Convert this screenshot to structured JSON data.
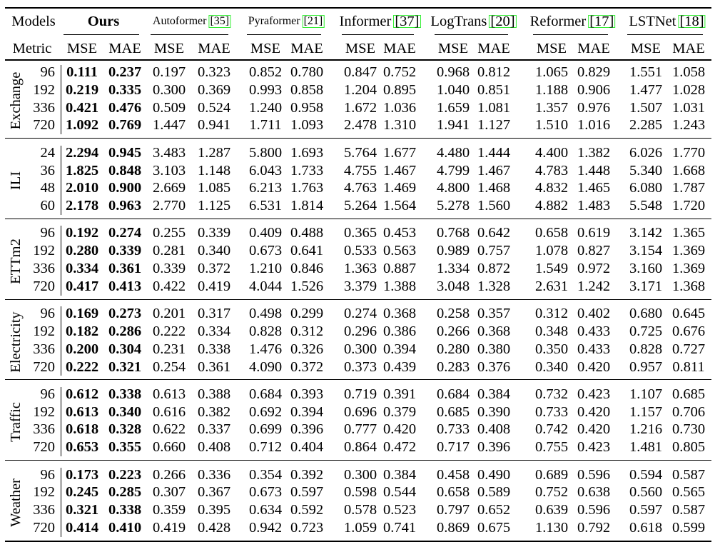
{
  "table": {
    "header": {
      "label": "Models",
      "models": [
        {
          "name": "Ours"
        },
        {
          "name": "Autoformer",
          "ref": "[35]"
        },
        {
          "name": "Pyraformer",
          "ref": "[21]"
        },
        {
          "name": "Informer",
          "ref": "[37]"
        },
        {
          "name": "LogTrans",
          "ref": "[20]"
        },
        {
          "name": "Reformer",
          "ref": "[17]"
        },
        {
          "name": "LSTNet",
          "ref": "[18]"
        }
      ]
    },
    "metric_row": {
      "label": "Metric",
      "metrics": [
        "MSE",
        "MAE"
      ]
    },
    "groups": [
      {
        "dataset": "Exchange",
        "rows": [
          {
            "horizon": "96",
            "values": [
              "0.111",
              "0.237",
              "0.197",
              "0.323",
              "0.852",
              "0.780",
              "0.847",
              "0.752",
              "0.968",
              "0.812",
              "1.065",
              "0.829",
              "1.551",
              "1.058"
            ]
          },
          {
            "horizon": "192",
            "values": [
              "0.219",
              "0.335",
              "0.300",
              "0.369",
              "0.993",
              "0.858",
              "1.204",
              "0.895",
              "1.040",
              "0.851",
              "1.188",
              "0.906",
              "1.477",
              "1.028"
            ]
          },
          {
            "horizon": "336",
            "values": [
              "0.421",
              "0.476",
              "0.509",
              "0.524",
              "1.240",
              "0.958",
              "1.672",
              "1.036",
              "1.659",
              "1.081",
              "1.357",
              "0.976",
              "1.507",
              "1.031"
            ]
          },
          {
            "horizon": "720",
            "values": [
              "1.092",
              "0.769",
              "1.447",
              "0.941",
              "1.711",
              "1.093",
              "2.478",
              "1.310",
              "1.941",
              "1.127",
              "1.510",
              "1.016",
              "2.285",
              "1.243"
            ]
          }
        ]
      },
      {
        "dataset": "ILI",
        "rows": [
          {
            "horizon": "24",
            "values": [
              "2.294",
              "0.945",
              "3.483",
              "1.287",
              "5.800",
              "1.693",
              "5.764",
              "1.677",
              "4.480",
              "1.444",
              "4.400",
              "1.382",
              "6.026",
              "1.770"
            ]
          },
          {
            "horizon": "36",
            "values": [
              "1.825",
              "0.848",
              "3.103",
              "1.148",
              "6.043",
              "1.733",
              "4.755",
              "1.467",
              "4.799",
              "1.467",
              "4.783",
              "1.448",
              "5.340",
              "1.668"
            ]
          },
          {
            "horizon": "48",
            "values": [
              "2.010",
              "0.900",
              "2.669",
              "1.085",
              "6.213",
              "1.763",
              "4.763",
              "1.469",
              "4.800",
              "1.468",
              "4.832",
              "1.465",
              "6.080",
              "1.787"
            ]
          },
          {
            "horizon": "60",
            "values": [
              "2.178",
              "0.963",
              "2.770",
              "1.125",
              "6.531",
              "1.814",
              "5.264",
              "1.564",
              "5.278",
              "1.560",
              "4.882",
              "1.483",
              "5.548",
              "1.720"
            ]
          }
        ]
      },
      {
        "dataset": "ETTm2",
        "rows": [
          {
            "horizon": "96",
            "values": [
              "0.192",
              "0.274",
              "0.255",
              "0.339",
              "0.409",
              "0.488",
              "0.365",
              "0.453",
              "0.768",
              "0.642",
              "0.658",
              "0.619",
              "3.142",
              "1.365"
            ]
          },
          {
            "horizon": "192",
            "values": [
              "0.280",
              "0.339",
              "0.281",
              "0.340",
              "0.673",
              "0.641",
              "0.533",
              "0.563",
              "0.989",
              "0.757",
              "1.078",
              "0.827",
              "3.154",
              "1.369"
            ]
          },
          {
            "horizon": "336",
            "values": [
              "0.334",
              "0.361",
              "0.339",
              "0.372",
              "1.210",
              "0.846",
              "1.363",
              "0.887",
              "1.334",
              "0.872",
              "1.549",
              "0.972",
              "3.160",
              "1.369"
            ]
          },
          {
            "horizon": "720",
            "values": [
              "0.417",
              "0.413",
              "0.422",
              "0.419",
              "4.044",
              "1.526",
              "3.379",
              "1.388",
              "3.048",
              "1.328",
              "2.631",
              "1.242",
              "3.171",
              "1.368"
            ]
          }
        ]
      },
      {
        "dataset": "Electricity",
        "rows": [
          {
            "horizon": "96",
            "values": [
              "0.169",
              "0.273",
              "0.201",
              "0.317",
              "0.498",
              "0.299",
              "0.274",
              "0.368",
              "0.258",
              "0.357",
              "0.312",
              "0.402",
              "0.680",
              "0.645"
            ]
          },
          {
            "horizon": "192",
            "values": [
              "0.182",
              "0.286",
              "0.222",
              "0.334",
              "0.828",
              "0.312",
              "0.296",
              "0.386",
              "0.266",
              "0.368",
              "0.348",
              "0.433",
              "0.725",
              "0.676"
            ]
          },
          {
            "horizon": "336",
            "values": [
              "0.200",
              "0.304",
              "0.231",
              "0.338",
              "1.476",
              "0.326",
              "0.300",
              "0.394",
              "0.280",
              "0.380",
              "0.350",
              "0.433",
              "0.828",
              "0.727"
            ]
          },
          {
            "horizon": "720",
            "values": [
              "0.222",
              "0.321",
              "0.254",
              "0.361",
              "4.090",
              "0.372",
              "0.373",
              "0.439",
              "0.283",
              "0.376",
              "0.340",
              "0.420",
              "0.957",
              "0.811"
            ]
          }
        ]
      },
      {
        "dataset": "Traffic",
        "rows": [
          {
            "horizon": "96",
            "values": [
              "0.612",
              "0.338",
              "0.613",
              "0.388",
              "0.684",
              "0.393",
              "0.719",
              "0.391",
              "0.684",
              "0.384",
              "0.732",
              "0.423",
              "1.107",
              "0.685"
            ]
          },
          {
            "horizon": "192",
            "values": [
              "0.613",
              "0.340",
              "0.616",
              "0.382",
              "0.692",
              "0.394",
              "0.696",
              "0.379",
              "0.685",
              "0.390",
              "0.733",
              "0.420",
              "1.157",
              "0.706"
            ]
          },
          {
            "horizon": "336",
            "values": [
              "0.618",
              "0.328",
              "0.622",
              "0.337",
              "0.699",
              "0.396",
              "0.777",
              "0.420",
              "0.733",
              "0.408",
              "0.742",
              "0.420",
              "1.216",
              "0.730"
            ]
          },
          {
            "horizon": "720",
            "values": [
              "0.653",
              "0.355",
              "0.660",
              "0.408",
              "0.712",
              "0.404",
              "0.864",
              "0.472",
              "0.717",
              "0.396",
              "0.755",
              "0.423",
              "1.481",
              "0.805"
            ]
          }
        ]
      },
      {
        "dataset": "Weather",
        "rows": [
          {
            "horizon": "96",
            "values": [
              "0.173",
              "0.223",
              "0.266",
              "0.336",
              "0.354",
              "0.392",
              "0.300",
              "0.384",
              "0.458",
              "0.490",
              "0.689",
              "0.596",
              "0.594",
              "0.587"
            ]
          },
          {
            "horizon": "192",
            "values": [
              "0.245",
              "0.285",
              "0.307",
              "0.367",
              "0.673",
              "0.597",
              "0.598",
              "0.544",
              "0.658",
              "0.589",
              "0.752",
              "0.638",
              "0.560",
              "0.565"
            ]
          },
          {
            "horizon": "336",
            "values": [
              "0.321",
              "0.338",
              "0.359",
              "0.395",
              "0.634",
              "0.592",
              "0.578",
              "0.523",
              "0.797",
              "0.652",
              "0.639",
              "0.596",
              "0.597",
              "0.587"
            ]
          },
          {
            "horizon": "720",
            "values": [
              "0.414",
              "0.410",
              "0.419",
              "0.428",
              "0.942",
              "0.723",
              "1.059",
              "0.741",
              "0.869",
              "0.675",
              "1.130",
              "0.792",
              "0.618",
              "0.599"
            ]
          }
        ]
      }
    ]
  }
}
